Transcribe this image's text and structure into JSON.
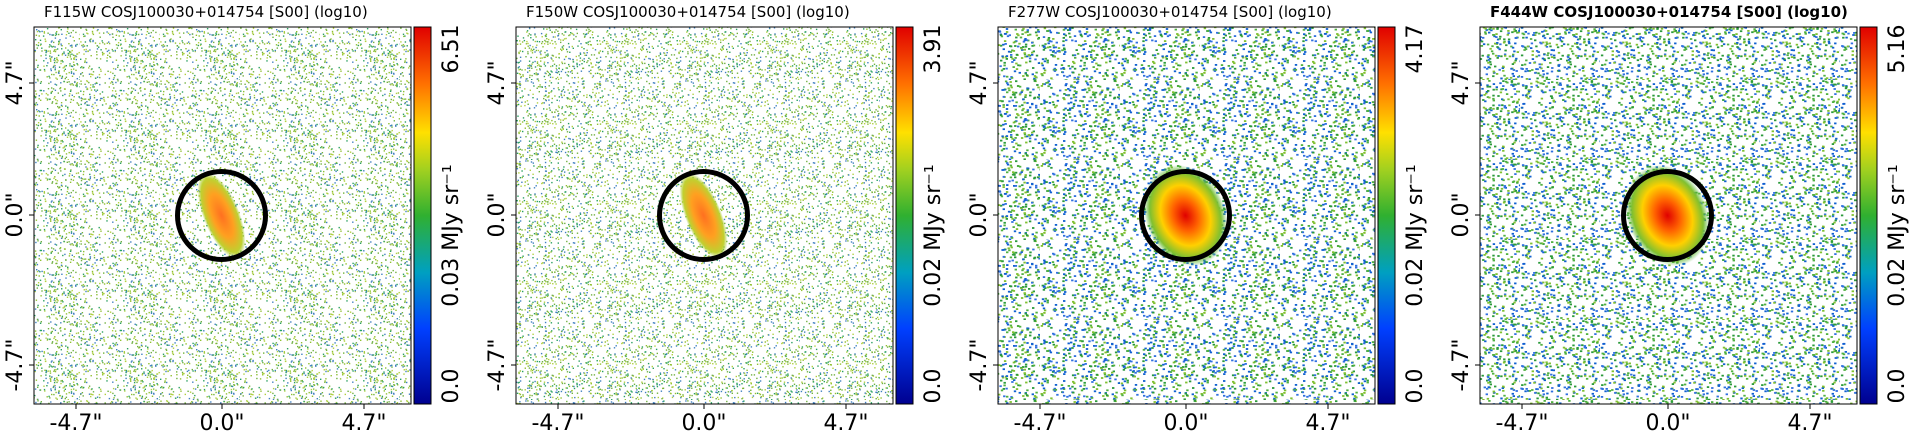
{
  "panels": [
    {
      "title": "F115W COSJ100030+014754 [S00] (log10)",
      "xticks": [
        "-4.7\"",
        "0.0\"",
        "4.7\""
      ],
      "yticks": [
        "4.7\"",
        "0.0\"",
        "-4.7\""
      ],
      "colorbar": {
        "max": "6.51",
        "label": "0.03 MJy sr⁻¹",
        "min": "0.0"
      }
    },
    {
      "title": "F150W COSJ100030+014754 [S00] (log10)",
      "xticks": [
        "-4.7\"",
        "0.0\"",
        "4.7\""
      ],
      "yticks": [
        "4.7\"",
        "0.0\"",
        "-4.7\""
      ],
      "colorbar": {
        "max": "3.91",
        "label": "0.02 MJy sr⁻¹",
        "min": "0.0"
      }
    },
    {
      "title": "F277W COSJ100030+014754 [S00] (log10)",
      "xticks": [
        "-4.7\"",
        "0.0\"",
        "4.7\""
      ],
      "yticks": [
        "4.7\"",
        "0.0\"",
        "-4.7\""
      ],
      "colorbar": {
        "max": "4.17",
        "label": "0.02 MJy sr⁻¹",
        "min": "0.0"
      }
    },
    {
      "title": "F444W COSJ100030+014754 [S00] (log10)",
      "xticks": [
        "-4.7\"",
        "0.0\"",
        "4.7\""
      ],
      "yticks": [
        "4.7\"",
        "0.0\"",
        "-4.7\""
      ],
      "colorbar": {
        "max": "5.16",
        "label": "0.02 MJy sr⁻¹",
        "min": "0.0"
      }
    }
  ]
}
